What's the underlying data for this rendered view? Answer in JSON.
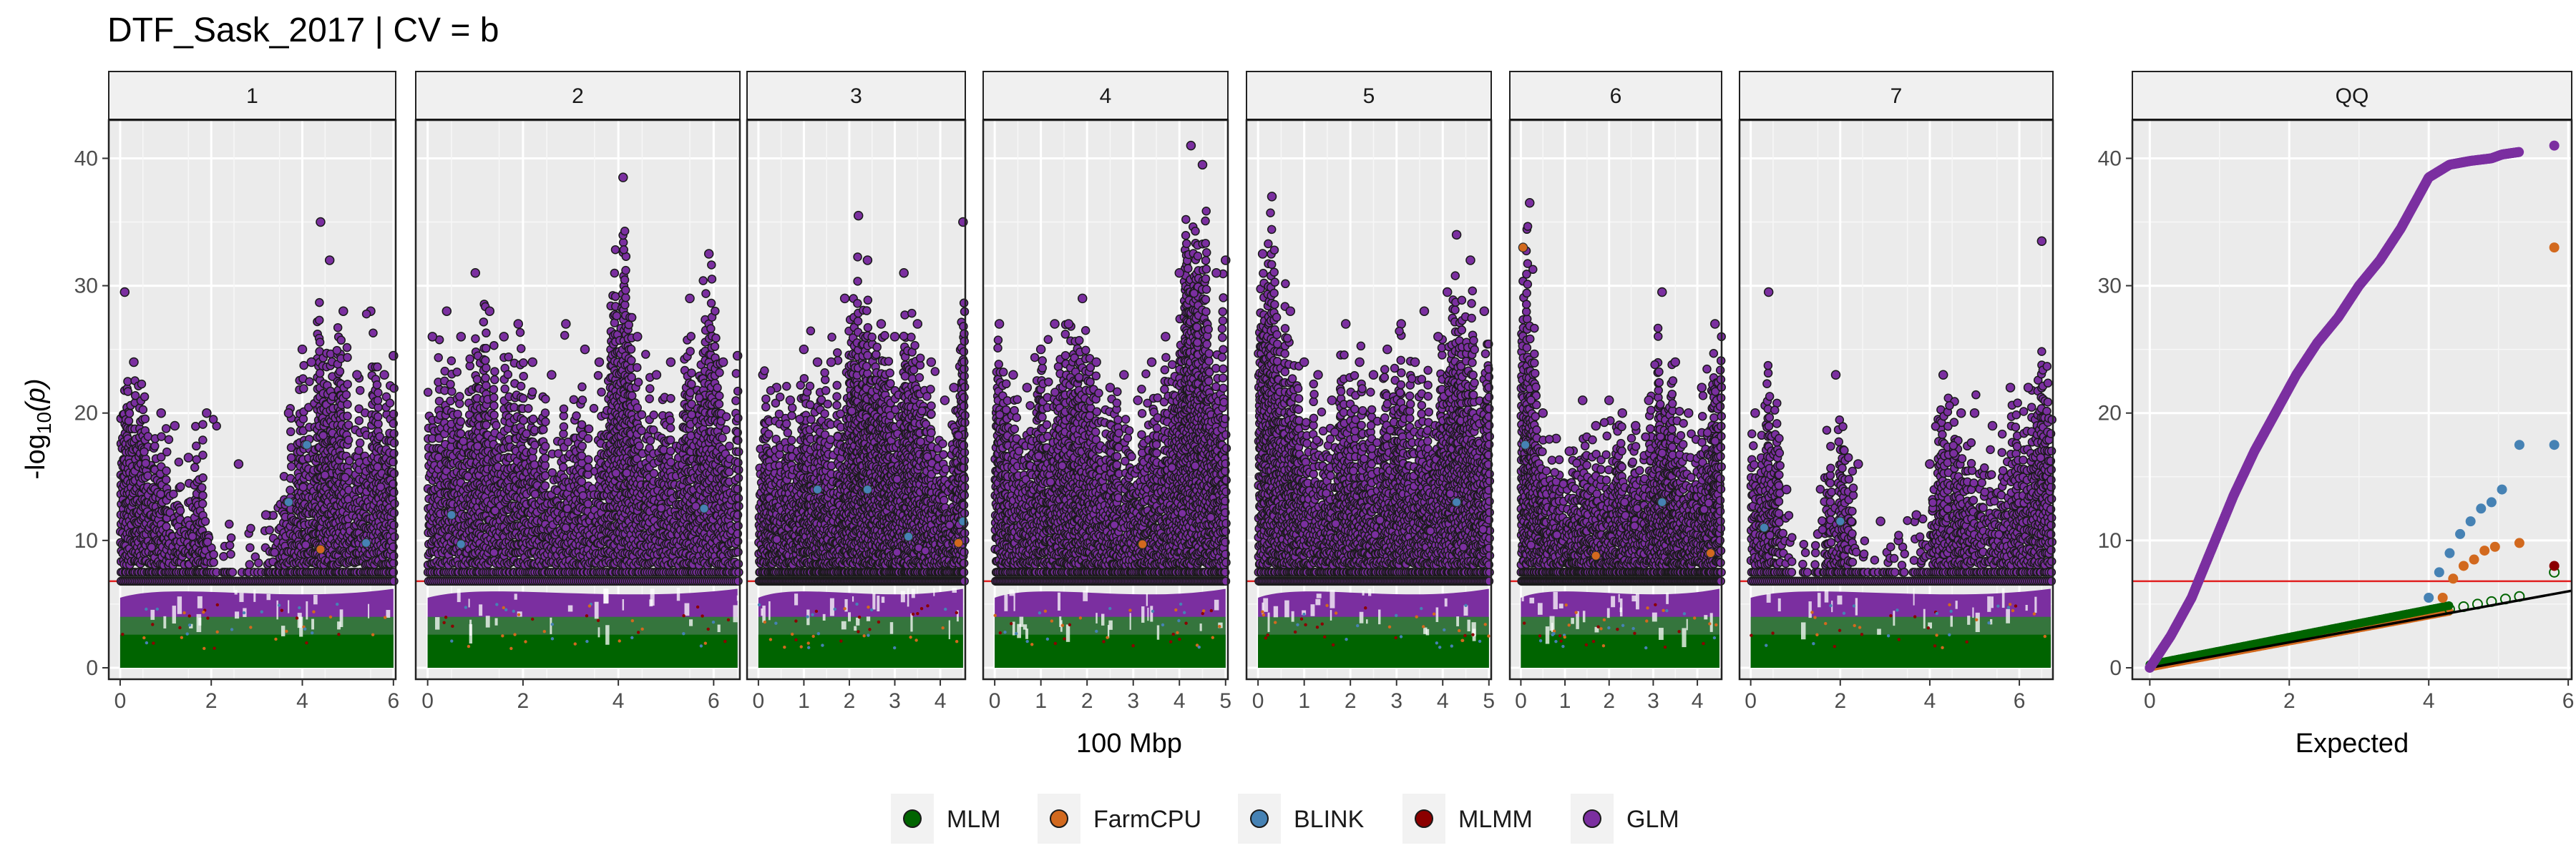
{
  "chart_data": {
    "type": "scatter",
    "title": "DTF_Sask_2017 | CV = b",
    "ylabel_main": "-log",
    "ylabel_sub": "10",
    "ylabel_arg": "(p)",
    "manhattan_xlabel": "100 Mbp",
    "qq_xlabel": "Expected",
    "threshold": 6.8,
    "ylim": [
      0,
      43
    ],
    "y_ticks": [
      "0",
      "10",
      "20",
      "30",
      "40"
    ],
    "y_tick_values": [
      0,
      10,
      20,
      30,
      40
    ],
    "grid": true,
    "legend_position": "bottom",
    "series": [
      {
        "name": "MLM",
        "color": "#006400"
      },
      {
        "name": "FarmCPU",
        "color": "#D2691E"
      },
      {
        "name": "BLINK",
        "color": "#4682B4"
      },
      {
        "name": "MLMM",
        "color": "#8B0000"
      },
      {
        "name": "GLM",
        "color": "#7B2FA0"
      }
    ],
    "chromosomes": [
      {
        "label": "1",
        "xmax": 6.05,
        "ticks": [
          "0",
          "2",
          "4",
          "6"
        ],
        "tick_values": [
          0,
          2,
          4,
          6
        ],
        "peaks": [
          [
            0.1,
            29.5
          ],
          [
            0.3,
            24
          ],
          [
            0.9,
            20
          ],
          [
            1.2,
            19
          ],
          [
            1.5,
            16.5
          ],
          [
            1.9,
            20
          ],
          [
            2.6,
            16
          ],
          [
            3.2,
            12
          ],
          [
            3.7,
            20
          ],
          [
            4.0,
            25
          ],
          [
            4.2,
            24
          ],
          [
            4.4,
            35
          ],
          [
            4.6,
            32
          ],
          [
            4.9,
            28
          ],
          [
            5.2,
            23
          ],
          [
            5.5,
            28
          ],
          [
            5.8,
            23
          ],
          [
            6.0,
            24.5
          ]
        ],
        "lows": [
          [
            2.2,
            8.5
          ],
          [
            2.6,
            7.5
          ],
          [
            3.0,
            8.5
          ]
        ],
        "extra": [
          {
            "s": "BLINK",
            "x": 4.1,
            "y": 17.5
          },
          {
            "s": "FarmCPU",
            "x": 4.4,
            "y": 9.3
          },
          {
            "s": "BLINK",
            "x": 5.4,
            "y": 9.8
          },
          {
            "s": "BLINK",
            "x": 3.7,
            "y": 13
          }
        ]
      },
      {
        "label": "2",
        "xmax": 6.55,
        "ticks": [
          "0",
          "2",
          "4",
          "6"
        ],
        "tick_values": [
          0,
          2,
          4,
          6
        ],
        "peaks": [
          [
            0.1,
            26
          ],
          [
            0.4,
            28
          ],
          [
            0.7,
            26
          ],
          [
            1.0,
            31
          ],
          [
            1.3,
            28
          ],
          [
            1.6,
            26
          ],
          [
            1.9,
            27
          ],
          [
            2.2,
            24
          ],
          [
            2.6,
            23
          ],
          [
            2.9,
            27
          ],
          [
            3.3,
            25
          ],
          [
            3.6,
            24
          ],
          [
            4.1,
            38.5
          ],
          [
            4.4,
            26
          ],
          [
            4.8,
            23
          ],
          [
            5.1,
            24
          ],
          [
            5.5,
            29
          ],
          [
            5.9,
            32.5
          ],
          [
            6.2,
            24
          ],
          [
            6.5,
            24.5
          ]
        ],
        "lows": [],
        "extra": [
          {
            "s": "BLINK",
            "x": 0.5,
            "y": 12
          },
          {
            "s": "BLINK",
            "x": 5.8,
            "y": 12.5
          },
          {
            "s": "BLINK",
            "x": 0.7,
            "y": 9.7
          }
        ]
      },
      {
        "label": "3",
        "xmax": 4.55,
        "ticks": [
          "0",
          "1",
          "2",
          "3",
          "4"
        ],
        "tick_values": [
          0,
          1,
          2,
          3,
          4
        ],
        "peaks": [
          [
            0.1,
            23
          ],
          [
            0.4,
            22
          ],
          [
            0.7,
            21
          ],
          [
            1.0,
            25
          ],
          [
            1.3,
            24
          ],
          [
            1.6,
            24
          ],
          [
            1.9,
            29
          ],
          [
            2.2,
            35.5
          ],
          [
            2.4,
            32
          ],
          [
            2.7,
            27
          ],
          [
            3.0,
            26
          ],
          [
            3.2,
            31
          ],
          [
            3.5,
            27
          ],
          [
            3.8,
            24
          ],
          [
            4.1,
            21
          ],
          [
            4.3,
            22
          ],
          [
            4.5,
            35
          ]
        ],
        "lows": [],
        "extra": [
          {
            "s": "BLINK",
            "x": 1.3,
            "y": 14
          },
          {
            "s": "BLINK",
            "x": 2.4,
            "y": 14
          },
          {
            "s": "BLINK",
            "x": 3.3,
            "y": 10.3
          },
          {
            "s": "FarmCPU",
            "x": 4.4,
            "y": 9.8
          },
          {
            "s": "BLINK",
            "x": 4.5,
            "y": 11.5
          }
        ]
      },
      {
        "label": "4",
        "xmax": 5.05,
        "ticks": [
          "0",
          "1",
          "2",
          "3",
          "4",
          "5"
        ],
        "tick_values": [
          0,
          1,
          2,
          3,
          4,
          5
        ],
        "peaks": [
          [
            0.1,
            27
          ],
          [
            0.4,
            23
          ],
          [
            0.7,
            22
          ],
          [
            1.0,
            25
          ],
          [
            1.3,
            27
          ],
          [
            1.6,
            27
          ],
          [
            1.9,
            29
          ],
          [
            2.2,
            24
          ],
          [
            2.5,
            22
          ],
          [
            2.8,
            23
          ],
          [
            3.1,
            21
          ],
          [
            3.4,
            24
          ],
          [
            3.7,
            26
          ],
          [
            4.0,
            31
          ],
          [
            4.25,
            41
          ],
          [
            4.5,
            39.5
          ],
          [
            4.8,
            31
          ],
          [
            5.0,
            32
          ]
        ],
        "lows": [],
        "extra": [
          {
            "s": "FarmCPU",
            "x": 3.2,
            "y": 9.7
          }
        ]
      },
      {
        "label": "5",
        "xmax": 5.05,
        "ticks": [
          "0",
          "1",
          "2",
          "3",
          "4",
          "5"
        ],
        "tick_values": [
          0,
          1,
          2,
          3,
          4,
          5
        ],
        "peaks": [
          [
            0.1,
            32.5
          ],
          [
            0.3,
            37
          ],
          [
            0.7,
            28
          ],
          [
            1.0,
            24
          ],
          [
            1.3,
            23
          ],
          [
            1.6,
            21
          ],
          [
            1.9,
            27
          ],
          [
            2.2,
            24
          ],
          [
            2.5,
            23
          ],
          [
            2.8,
            25
          ],
          [
            3.1,
            27
          ],
          [
            3.4,
            24
          ],
          [
            3.6,
            28
          ],
          [
            3.9,
            26
          ],
          [
            4.1,
            29.5
          ],
          [
            4.3,
            34
          ],
          [
            4.6,
            32
          ],
          [
            4.9,
            28
          ]
        ],
        "lows": [],
        "extra": [
          {
            "s": "BLINK",
            "x": 4.3,
            "y": 13
          }
        ]
      },
      {
        "label": "6",
        "xmax": 4.55,
        "ticks": [
          "0",
          "1",
          "2",
          "3",
          "4"
        ],
        "tick_values": [
          0,
          1,
          2,
          3,
          4
        ],
        "peaks": [
          [
            0.05,
            33
          ],
          [
            0.2,
            36.5
          ],
          [
            0.5,
            20
          ],
          [
            0.8,
            18
          ],
          [
            1.1,
            17
          ],
          [
            1.4,
            21
          ],
          [
            1.7,
            19
          ],
          [
            2.0,
            21
          ],
          [
            2.3,
            20
          ],
          [
            2.6,
            19
          ],
          [
            2.9,
            21
          ],
          [
            3.2,
            29.5
          ],
          [
            3.5,
            24
          ],
          [
            3.8,
            20
          ],
          [
            4.1,
            22
          ],
          [
            4.4,
            27
          ]
        ],
        "lows": [],
        "extra": [
          {
            "s": "FarmCPU",
            "x": 0.05,
            "y": 33
          },
          {
            "s": "BLINK",
            "x": 0.1,
            "y": 17.5
          },
          {
            "s": "FarmCPU",
            "x": 1.7,
            "y": 8.8
          },
          {
            "s": "BLINK",
            "x": 3.2,
            "y": 13
          },
          {
            "s": "FarmCPU",
            "x": 4.3,
            "y": 9
          }
        ]
      },
      {
        "label": "7",
        "xmax": 6.75,
        "ticks": [
          "0",
          "2",
          "4",
          "6"
        ],
        "tick_values": [
          0,
          2,
          4,
          6
        ],
        "peaks": [
          [
            0.1,
            20
          ],
          [
            0.4,
            29.5
          ],
          [
            0.8,
            14
          ],
          [
            1.5,
            10.5
          ],
          [
            1.9,
            23
          ],
          [
            2.4,
            16
          ],
          [
            2.9,
            11.5
          ],
          [
            3.3,
            10
          ],
          [
            3.7,
            12
          ],
          [
            4.0,
            16
          ],
          [
            4.3,
            23
          ],
          [
            4.7,
            20
          ],
          [
            5.0,
            20
          ],
          [
            5.4,
            19
          ],
          [
            5.8,
            22
          ],
          [
            6.2,
            22
          ],
          [
            6.5,
            33.5
          ]
        ],
        "lows": [
          [
            1.1,
            8.8
          ],
          [
            2.7,
            8.5
          ],
          [
            3.5,
            9
          ]
        ],
        "extra": [
          {
            "s": "BLINK",
            "x": 0.3,
            "y": 11
          },
          {
            "s": "BLINK",
            "x": 2.0,
            "y": 11.5
          }
        ]
      }
    ],
    "qq": {
      "label": "QQ",
      "xlim": [
        -0.25,
        6.05
      ],
      "ticks": [
        "0",
        "2",
        "4",
        "6"
      ],
      "tick_values": [
        0,
        2,
        4,
        6
      ],
      "glm_curve": [
        [
          0,
          0
        ],
        [
          0.3,
          2.5
        ],
        [
          0.6,
          5.5
        ],
        [
          0.9,
          9.5
        ],
        [
          1.2,
          13.5
        ],
        [
          1.5,
          17
        ],
        [
          1.8,
          20
        ],
        [
          2.1,
          23
        ],
        [
          2.4,
          25.5
        ],
        [
          2.7,
          27.5
        ],
        [
          3.0,
          30
        ],
        [
          3.3,
          32
        ],
        [
          3.6,
          34.5
        ],
        [
          3.8,
          36.5
        ],
        [
          4.0,
          38.5
        ],
        [
          4.3,
          39.5
        ],
        [
          4.6,
          39.8
        ],
        [
          4.9,
          40
        ],
        [
          5.05,
          40.3
        ],
        [
          5.3,
          40.5
        ]
      ],
      "glm_top": [
        5.8,
        41
      ],
      "blink_points": [
        [
          4.0,
          5.5
        ],
        [
          4.15,
          7.5
        ],
        [
          4.3,
          9
        ],
        [
          4.45,
          10.5
        ],
        [
          4.6,
          11.5
        ],
        [
          4.75,
          12.5
        ],
        [
          4.9,
          13
        ],
        [
          5.05,
          14
        ],
        [
          5.3,
          17.5
        ],
        [
          5.8,
          17.5
        ]
      ],
      "farmcpu_points": [
        [
          4.2,
          5.5
        ],
        [
          4.35,
          7
        ],
        [
          4.5,
          8
        ],
        [
          4.65,
          8.5
        ],
        [
          4.8,
          9.2
        ],
        [
          4.95,
          9.5
        ],
        [
          5.3,
          9.8
        ],
        [
          5.8,
          33
        ]
      ],
      "mlm_points": [
        [
          4.3,
          4.6
        ],
        [
          4.5,
          4.8
        ],
        [
          4.7,
          5
        ],
        [
          4.9,
          5.2
        ],
        [
          5.1,
          5.4
        ],
        [
          5.3,
          5.6
        ],
        [
          5.8,
          7.5
        ]
      ],
      "mlmm_points": [
        [
          5.8,
          8
        ]
      ]
    }
  }
}
